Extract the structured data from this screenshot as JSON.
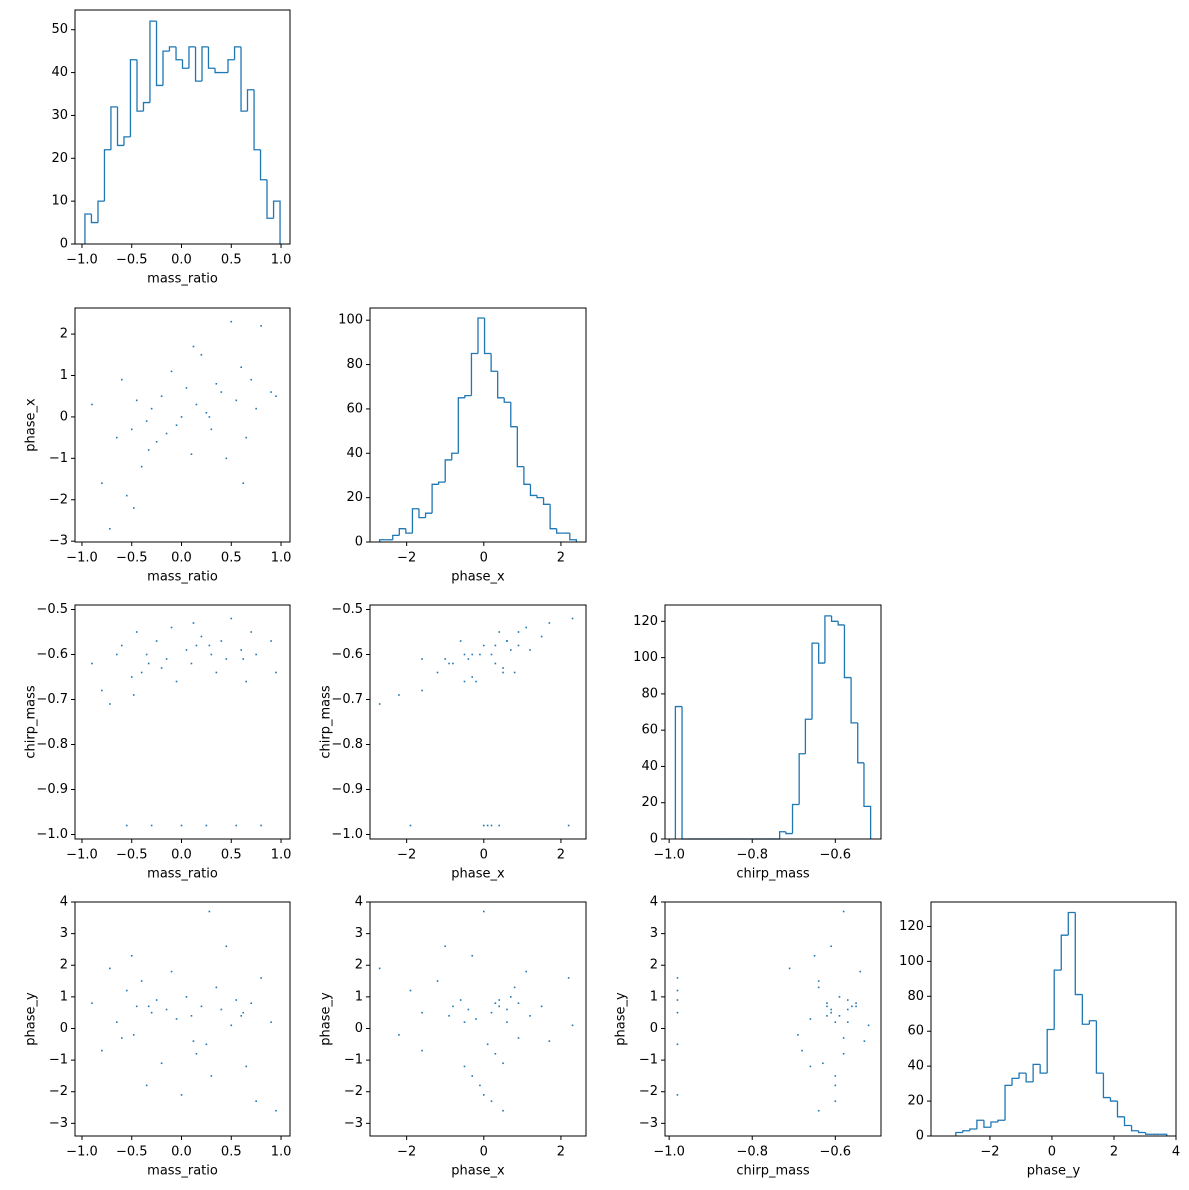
{
  "chart_data": [
    {
      "type": "histogram",
      "xlabel": "mass_ratio",
      "color": "#1f77b4",
      "bins": [
        -0.97,
        -0.905,
        -0.839,
        -0.774,
        -0.709,
        -0.643,
        -0.578,
        -0.513,
        -0.447,
        -0.382,
        -0.317,
        -0.251,
        -0.186,
        -0.121,
        -0.055,
        0.01,
        0.075,
        0.141,
        0.206,
        0.271,
        0.337,
        0.402,
        0.467,
        0.533,
        0.598,
        0.663,
        0.729,
        0.794,
        0.859,
        0.925,
        0.99
      ],
      "values": [
        7,
        5,
        10,
        22,
        32,
        23,
        25,
        43,
        31,
        33,
        52,
        37,
        45,
        46,
        43,
        41,
        46,
        38,
        46,
        41,
        40,
        40,
        43,
        46,
        31,
        36,
        22,
        15,
        6,
        10
      ],
      "xlim": [
        -1.07,
        1.09
      ],
      "ylim": [
        0,
        54.6
      ],
      "xticks": [
        {
          "value": -1,
          "label": "−1.0"
        },
        {
          "value": -0.5,
          "label": "−0.5"
        },
        {
          "value": 0,
          "label": "0.0"
        },
        {
          "value": 0.5,
          "label": "0.5"
        },
        {
          "value": 1,
          "label": "1.0"
        }
      ],
      "yticks": [
        0,
        10,
        20,
        30,
        40,
        50
      ]
    },
    {
      "type": "scatter",
      "xlabel": "mass_ratio",
      "ylabel": "phase_x",
      "color": "#1f77b4",
      "x": [
        -0.9,
        -0.8,
        -0.72,
        -0.65,
        -0.6,
        -0.55,
        -0.5,
        -0.45,
        -0.4,
        -0.35,
        -0.3,
        -0.25,
        -0.2,
        -0.15,
        -0.1,
        -0.05,
        0.0,
        0.05,
        0.1,
        0.15,
        0.2,
        0.25,
        0.3,
        0.35,
        0.4,
        0.45,
        0.5,
        0.55,
        0.6,
        0.65,
        0.7,
        0.75,
        0.8,
        0.9,
        -0.33,
        0.12,
        -0.48,
        0.28,
        0.62,
        0.95
      ],
      "y": [
        0.3,
        -1.6,
        -2.7,
        -0.5,
        0.9,
        -1.9,
        -0.3,
        0.4,
        -1.2,
        -0.1,
        0.2,
        -0.6,
        0.5,
        -0.4,
        1.1,
        -0.2,
        0.0,
        0.7,
        -0.9,
        0.3,
        1.5,
        0.1,
        -0.3,
        0.8,
        0.6,
        -1.0,
        2.3,
        0.4,
        1.2,
        -0.5,
        0.9,
        0.2,
        2.2,
        0.6,
        -0.8,
        1.7,
        -2.2,
        0.0,
        -1.6,
        0.5
      ],
      "xlim": [
        -1.07,
        1.09
      ],
      "ylim": [
        -3.02,
        2.63
      ],
      "xticks": [
        {
          "value": -1,
          "label": "−1.0"
        },
        {
          "value": -0.5,
          "label": "−0.5"
        },
        {
          "value": 0,
          "label": "0.0"
        },
        {
          "value": 0.5,
          "label": "0.5"
        },
        {
          "value": 1,
          "label": "1.0"
        }
      ],
      "yticks": [
        {
          "value": -3,
          "label": "−3"
        },
        {
          "value": -2,
          "label": "−2"
        },
        {
          "value": -1,
          "label": "−1"
        },
        0,
        1,
        2
      ]
    },
    {
      "type": "histogram",
      "xlabel": "phase_x",
      "color": "#1f77b4",
      "bins": [
        -2.7,
        -2.53,
        -2.36,
        -2.19,
        -2.02,
        -1.85,
        -1.68,
        -1.51,
        -1.34,
        -1.17,
        -1.0,
        -0.83,
        -0.66,
        -0.49,
        -0.32,
        -0.15,
        0.02,
        0.19,
        0.36,
        0.53,
        0.7,
        0.87,
        1.04,
        1.21,
        1.38,
        1.55,
        1.72,
        1.89,
        2.06,
        2.23,
        2.4
      ],
      "values": [
        1,
        1,
        3,
        6,
        4,
        15,
        11,
        13,
        26,
        27,
        37,
        40,
        65,
        66,
        85,
        101,
        85,
        77,
        65,
        63,
        52,
        34,
        26,
        21,
        20,
        17,
        6,
        4,
        4,
        1
      ],
      "xlim": [
        -2.95,
        2.65
      ],
      "ylim": [
        0,
        105.5
      ],
      "xticks": [
        {
          "value": -2,
          "label": "−2"
        },
        0,
        2
      ],
      "yticks": [
        0,
        20,
        40,
        60,
        80,
        100
      ]
    },
    {
      "type": "scatter",
      "xlabel": "mass_ratio",
      "ylabel": "chirp_mass",
      "color": "#1f77b4",
      "x": [
        -0.9,
        -0.8,
        -0.72,
        -0.65,
        -0.6,
        -0.55,
        -0.5,
        -0.45,
        -0.4,
        -0.35,
        -0.3,
        -0.25,
        -0.2,
        -0.15,
        -0.1,
        -0.05,
        0.0,
        0.05,
        0.1,
        0.15,
        0.2,
        0.25,
        0.3,
        0.35,
        0.4,
        0.45,
        0.5,
        0.55,
        0.6,
        0.65,
        0.7,
        0.75,
        0.8,
        0.9,
        -0.33,
        0.12,
        -0.48,
        0.28,
        0.62,
        0.95
      ],
      "y": [
        -0.62,
        -0.68,
        -0.71,
        -0.6,
        -0.58,
        -0.98,
        -0.65,
        -0.55,
        -0.64,
        -0.6,
        -0.98,
        -0.57,
        -0.63,
        -0.61,
        -0.54,
        -0.66,
        -0.98,
        -0.59,
        -0.62,
        -0.58,
        -0.56,
        -0.98,
        -0.6,
        -0.64,
        -0.57,
        -0.61,
        -0.52,
        -0.98,
        -0.59,
        -0.66,
        -0.55,
        -0.6,
        -0.98,
        -0.57,
        -0.62,
        -0.53,
        -0.69,
        -0.58,
        -0.61,
        -0.64
      ],
      "xlim": [
        -1.07,
        1.09
      ],
      "ylim": [
        -1.01,
        -0.49
      ],
      "xticks": [
        {
          "value": -1,
          "label": "−1.0"
        },
        {
          "value": -0.5,
          "label": "−0.5"
        },
        {
          "value": 0,
          "label": "0.0"
        },
        {
          "value": 0.5,
          "label": "0.5"
        },
        {
          "value": 1,
          "label": "1.0"
        }
      ],
      "yticks": [
        {
          "value": -1,
          "label": "−1.0"
        },
        {
          "value": -0.9,
          "label": "−0.9"
        },
        {
          "value": -0.8,
          "label": "−0.8"
        },
        {
          "value": -0.7,
          "label": "−0.7"
        },
        {
          "value": -0.6,
          "label": "−0.6"
        },
        {
          "value": -0.5,
          "label": "−0.5"
        }
      ]
    },
    {
      "type": "scatter",
      "xlabel": "phase_x",
      "ylabel": "chirp_mass",
      "color": "#1f77b4",
      "x": [
        0.3,
        -1.6,
        -2.7,
        -0.5,
        0.9,
        -1.9,
        -0.3,
        0.4,
        -1.2,
        -0.1,
        0.2,
        -0.6,
        0.5,
        -0.4,
        1.1,
        -0.2,
        0.0,
        0.7,
        -0.9,
        0.3,
        1.5,
        0.1,
        -0.3,
        0.8,
        0.6,
        -1.0,
        2.3,
        0.4,
        1.2,
        -0.5,
        0.9,
        0.2,
        2.2,
        0.6,
        -0.8,
        1.7,
        -2.2,
        0.0,
        -1.6,
        0.5
      ],
      "y": [
        -0.62,
        -0.68,
        -0.71,
        -0.6,
        -0.58,
        -0.98,
        -0.65,
        -0.55,
        -0.64,
        -0.6,
        -0.98,
        -0.57,
        -0.63,
        -0.61,
        -0.54,
        -0.66,
        -0.98,
        -0.59,
        -0.62,
        -0.58,
        -0.56,
        -0.98,
        -0.6,
        -0.64,
        -0.57,
        -0.61,
        -0.52,
        -0.98,
        -0.59,
        -0.66,
        -0.55,
        -0.6,
        -0.98,
        -0.57,
        -0.62,
        -0.53,
        -0.69,
        -0.58,
        -0.61,
        -0.64
      ],
      "xlim": [
        -2.95,
        2.65
      ],
      "ylim": [
        -1.01,
        -0.49
      ],
      "xticks": [
        {
          "value": -2,
          "label": "−2"
        },
        0,
        2
      ],
      "yticks": [
        {
          "value": -1,
          "label": "−1.0"
        },
        {
          "value": -0.9,
          "label": "−0.9"
        },
        {
          "value": -0.8,
          "label": "−0.8"
        },
        {
          "value": -0.7,
          "label": "−0.7"
        },
        {
          "value": -0.6,
          "label": "−0.6"
        },
        {
          "value": -0.5,
          "label": "−0.5"
        }
      ]
    },
    {
      "type": "histogram",
      "xlabel": "chirp_mass",
      "color": "#1f77b4",
      "bins": [
        -0.985,
        -0.969,
        -0.954,
        -0.938,
        -0.922,
        -0.907,
        -0.891,
        -0.875,
        -0.86,
        -0.844,
        -0.828,
        -0.813,
        -0.797,
        -0.781,
        -0.766,
        -0.75,
        -0.734,
        -0.719,
        -0.703,
        -0.687,
        -0.672,
        -0.656,
        -0.64,
        -0.625,
        -0.609,
        -0.593,
        -0.578,
        -0.562,
        -0.546,
        -0.531,
        -0.515
      ],
      "values": [
        73,
        0,
        0,
        0,
        0,
        0,
        0,
        0,
        0,
        0,
        0,
        0,
        0,
        0,
        0,
        0,
        4,
        3,
        19,
        47,
        66,
        108,
        97,
        123,
        120,
        118,
        89,
        64,
        42,
        18
      ],
      "xlim": [
        -1.01,
        -0.49
      ],
      "ylim": [
        0,
        129
      ],
      "xticks": [
        {
          "value": -1,
          "label": "−1.0"
        },
        {
          "value": -0.8,
          "label": "−0.8"
        },
        {
          "value": -0.6,
          "label": "−0.6"
        }
      ],
      "yticks": [
        0,
        20,
        40,
        60,
        80,
        100,
        120
      ]
    },
    {
      "type": "scatter",
      "xlabel": "mass_ratio",
      "ylabel": "phase_y",
      "color": "#1f77b4",
      "x": [
        -0.9,
        -0.8,
        -0.72,
        -0.65,
        -0.6,
        -0.55,
        -0.5,
        -0.45,
        -0.4,
        -0.35,
        -0.3,
        -0.25,
        -0.2,
        -0.15,
        -0.1,
        -0.05,
        0.0,
        0.05,
        0.1,
        0.15,
        0.2,
        0.25,
        0.3,
        0.35,
        0.4,
        0.45,
        0.5,
        0.55,
        0.6,
        0.65,
        0.7,
        0.75,
        0.8,
        0.9,
        -0.33,
        0.12,
        -0.48,
        0.28,
        0.62,
        0.95
      ],
      "y": [
        0.8,
        -0.7,
        1.9,
        0.2,
        -0.3,
        1.2,
        2.3,
        0.7,
        1.5,
        -1.8,
        0.5,
        0.9,
        -1.1,
        0.6,
        1.8,
        0.3,
        -2.1,
        1.0,
        0.4,
        -0.8,
        0.7,
        -0.5,
        -1.5,
        1.3,
        0.6,
        2.6,
        0.1,
        0.9,
        0.4,
        -1.2,
        0.8,
        -2.3,
        1.6,
        0.2,
        0.7,
        -0.4,
        -0.2,
        3.7,
        0.5,
        -2.6
      ],
      "xlim": [
        -1.07,
        1.09
      ],
      "ylim": [
        -3.4,
        4.0
      ],
      "xticks": [
        {
          "value": -1,
          "label": "−1.0"
        },
        {
          "value": -0.5,
          "label": "−0.5"
        },
        {
          "value": 0,
          "label": "0.0"
        },
        {
          "value": 0.5,
          "label": "0.5"
        },
        {
          "value": 1,
          "label": "1.0"
        }
      ],
      "yticks": [
        {
          "value": -3,
          "label": "−3"
        },
        {
          "value": -2,
          "label": "−2"
        },
        {
          "value": -1,
          "label": "−1"
        },
        0,
        1,
        2,
        3,
        4
      ]
    },
    {
      "type": "scatter",
      "xlabel": "phase_x",
      "ylabel": "phase_y",
      "color": "#1f77b4",
      "x": [
        0.3,
        -1.6,
        -2.7,
        -0.5,
        0.9,
        -1.9,
        -0.3,
        0.4,
        -1.2,
        -0.1,
        0.2,
        -0.6,
        0.5,
        -0.4,
        1.1,
        -0.2,
        0.0,
        0.7,
        -0.9,
        0.3,
        1.5,
        0.1,
        -0.3,
        0.8,
        0.6,
        -1.0,
        2.3,
        0.4,
        1.2,
        -0.5,
        0.9,
        0.2,
        2.2,
        0.6,
        -0.8,
        1.7,
        -2.2,
        0.0,
        -1.6,
        0.5
      ],
      "y": [
        0.8,
        -0.7,
        1.9,
        0.2,
        -0.3,
        1.2,
        2.3,
        0.7,
        1.5,
        -1.8,
        0.5,
        0.9,
        -1.1,
        0.6,
        1.8,
        0.3,
        -2.1,
        1.0,
        0.4,
        -0.8,
        0.7,
        -0.5,
        -1.5,
        1.3,
        0.6,
        2.6,
        0.1,
        0.9,
        0.4,
        -1.2,
        0.8,
        -2.3,
        1.6,
        0.2,
        0.7,
        -0.4,
        -0.2,
        3.7,
        0.5,
        -2.6
      ],
      "xlim": [
        -2.95,
        2.65
      ],
      "ylim": [
        -3.4,
        4.0
      ],
      "xticks": [
        {
          "value": -2,
          "label": "−2"
        },
        0,
        2
      ],
      "yticks": [
        {
          "value": -3,
          "label": "−3"
        },
        {
          "value": -2,
          "label": "−2"
        },
        {
          "value": -1,
          "label": "−1"
        },
        0,
        1,
        2,
        3,
        4
      ]
    },
    {
      "type": "scatter",
      "xlabel": "chirp_mass",
      "ylabel": "phase_y",
      "color": "#1f77b4",
      "x": [
        -0.62,
        -0.68,
        -0.71,
        -0.6,
        -0.58,
        -0.98,
        -0.65,
        -0.55,
        -0.64,
        -0.6,
        -0.98,
        -0.57,
        -0.63,
        -0.61,
        -0.54,
        -0.66,
        -0.98,
        -0.59,
        -0.62,
        -0.58,
        -0.56,
        -0.98,
        -0.6,
        -0.64,
        -0.57,
        -0.61,
        -0.52,
        -0.98,
        -0.59,
        -0.66,
        -0.55,
        -0.6,
        -0.98,
        -0.57,
        -0.62,
        -0.53,
        -0.69,
        -0.58,
        -0.61,
        -0.64
      ],
      "y": [
        0.8,
        -0.7,
        1.9,
        0.2,
        -0.3,
        1.2,
        2.3,
        0.7,
        1.5,
        -1.8,
        0.5,
        0.9,
        -1.1,
        0.6,
        1.8,
        0.3,
        -2.1,
        1.0,
        0.4,
        -0.8,
        0.7,
        -0.5,
        -1.5,
        1.3,
        0.6,
        2.6,
        0.1,
        0.9,
        0.4,
        -1.2,
        0.8,
        -2.3,
        1.6,
        0.2,
        0.7,
        -0.4,
        -0.2,
        3.7,
        0.5,
        -2.6
      ],
      "xlim": [
        -1.01,
        -0.49
      ],
      "ylim": [
        -3.4,
        4.0
      ],
      "xticks": [
        {
          "value": -1,
          "label": "−1.0"
        },
        {
          "value": -0.8,
          "label": "−0.8"
        },
        {
          "value": -0.6,
          "label": "−0.6"
        }
      ],
      "yticks": [
        {
          "value": -3,
          "label": "−3"
        },
        {
          "value": -2,
          "label": "−2"
        },
        {
          "value": -1,
          "label": "−1"
        },
        0,
        1,
        2,
        3,
        4
      ]
    },
    {
      "type": "histogram",
      "xlabel": "phase_y",
      "color": "#1f77b4",
      "bins": [
        -3.1,
        -2.873,
        -2.647,
        -2.42,
        -2.193,
        -1.967,
        -1.74,
        -1.513,
        -1.287,
        -1.06,
        -0.833,
        -0.607,
        -0.38,
        -0.153,
        0.073,
        0.3,
        0.527,
        0.753,
        0.98,
        1.207,
        1.433,
        1.66,
        1.887,
        2.113,
        2.34,
        2.567,
        2.793,
        3.02,
        3.247,
        3.473,
        3.7
      ],
      "values": [
        2,
        3,
        4,
        9,
        5,
        8,
        9,
        29,
        33,
        36,
        31,
        41,
        36,
        61,
        95,
        115,
        128,
        81,
        64,
        66,
        36,
        22,
        20,
        11,
        6,
        3,
        2,
        1,
        1,
        1
      ],
      "xlim": [
        -3.9,
        4.0
      ],
      "ylim": [
        0,
        134
      ],
      "xticks": [
        {
          "value": -2,
          "label": "−2"
        },
        0,
        2,
        4
      ],
      "yticks": [
        0,
        20,
        40,
        60,
        80,
        100,
        120
      ]
    }
  ]
}
